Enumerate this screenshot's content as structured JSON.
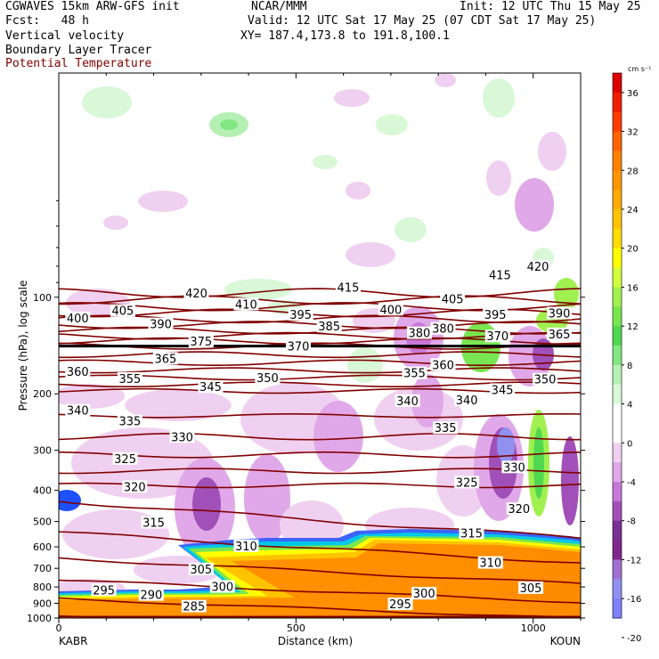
{
  "header": {
    "model": "CGWAVES 15km ARW-GFS init",
    "fcst": "Fcst:   48 h",
    "center": "NCAR/MMM",
    "init": "Init: 12 UTC Thu 15 May 25",
    "valid": "Valid: 12 UTC Sat 17 May 25 (07 CDT Sat 17 May 25)",
    "xy": "XY= 187.4,173.8 to 191.8,100.1",
    "fields": [
      "Vertical velocity",
      "Boundary Layer Tracer",
      "Potential Temperature"
    ],
    "field_colors": [
      "#000000",
      "#000000",
      "#800000"
    ]
  },
  "chart_data": {
    "type": "heatmap",
    "title": "Vertical velocity",
    "xlabel": "Distance (km)",
    "ylabel": "Pressure (hPa), log scale",
    "x_ticks": [
      0,
      500,
      1000
    ],
    "x_range": [
      0,
      1100
    ],
    "y_ticks": [
      100,
      200,
      300,
      400,
      500,
      600,
      700,
      800,
      900,
      1000
    ],
    "y_range": [
      1000,
      20
    ],
    "y_scale": "log",
    "endpoints": {
      "left": "KABR",
      "right": "KOUN"
    },
    "colorbar": {
      "units": "cm s⁻¹",
      "labels": [
        36,
        32,
        28,
        24,
        20,
        16,
        12,
        8,
        4,
        0,
        -4,
        -8,
        -12,
        -16,
        -20
      ],
      "colors": [
        "#dc0000",
        "#f01e00",
        "#ff3c00",
        "#ff6400",
        "#ff8200",
        "#ff9600",
        "#ffaa00",
        "#ffc300",
        "#ffdc00",
        "#ffff00",
        "#d2ff3c",
        "#a0f050",
        "#78e650",
        "#50d850",
        "#82e682",
        "#b4f0b4",
        "#d8f8d8",
        "#ffffff",
        "#ffffff",
        "#f0d0f0",
        "#e0a8e8",
        "#c878d8",
        "#a050b8",
        "#7a3094",
        "#80288c",
        "#a070d0",
        "#9090f0",
        "#8080ff"
      ]
    },
    "theta_labels": [
      {
        "value": 420,
        "x": 290,
        "p": 97
      },
      {
        "value": 410,
        "x": 395,
        "p": 105
      },
      {
        "value": 405,
        "x": 135,
        "p": 110
      },
      {
        "value": 400,
        "x": 40,
        "p": 116
      },
      {
        "value": 395,
        "x": 510,
        "p": 113
      },
      {
        "value": 390,
        "x": 215,
        "p": 121
      },
      {
        "value": 385,
        "x": 570,
        "p": 123
      },
      {
        "value": 375,
        "x": 300,
        "p": 137
      },
      {
        "value": 370,
        "x": 505,
        "p": 142
      },
      {
        "value": 365,
        "x": 225,
        "p": 155
      },
      {
        "value": 360,
        "x": 40,
        "p": 170
      },
      {
        "value": 355,
        "x": 150,
        "p": 179
      },
      {
        "value": 350,
        "x": 440,
        "p": 178
      },
      {
        "value": 345,
        "x": 320,
        "p": 190
      },
      {
        "value": 340,
        "x": 40,
        "p": 225
      },
      {
        "value": 335,
        "x": 150,
        "p": 243
      },
      {
        "value": 330,
        "x": 260,
        "p": 272
      },
      {
        "value": 325,
        "x": 140,
        "p": 318
      },
      {
        "value": 320,
        "x": 160,
        "p": 389
      },
      {
        "value": 315,
        "x": 200,
        "p": 503
      },
      {
        "value": 310,
        "x": 395,
        "p": 595
      },
      {
        "value": 305,
        "x": 300,
        "p": 703
      },
      {
        "value": 300,
        "x": 345,
        "p": 797
      },
      {
        "value": 295,
        "x": 95,
        "p": 817
      },
      {
        "value": 290,
        "x": 195,
        "p": 845
      },
      {
        "value": 285,
        "x": 285,
        "p": 918
      },
      {
        "value": 415,
        "x": 610,
        "p": 93
      },
      {
        "value": 400,
        "x": 700,
        "p": 109
      },
      {
        "value": 405,
        "x": 830,
        "p": 101
      },
      {
        "value": 415,
        "x": 930,
        "p": 85
      },
      {
        "value": 420,
        "x": 1010,
        "p": 80
      },
      {
        "value": 380,
        "x": 760,
        "p": 129
      },
      {
        "value": 380,
        "x": 810,
        "p": 125
      },
      {
        "value": 395,
        "x": 920,
        "p": 113
      },
      {
        "value": 390,
        "x": 1055,
        "p": 112
      },
      {
        "value": 370,
        "x": 925,
        "p": 132
      },
      {
        "value": 365,
        "x": 1055,
        "p": 130
      },
      {
        "value": 360,
        "x": 810,
        "p": 162
      },
      {
        "value": 355,
        "x": 750,
        "p": 172
      },
      {
        "value": 345,
        "x": 935,
        "p": 194
      },
      {
        "value": 350,
        "x": 1025,
        "p": 180
      },
      {
        "value": 340,
        "x": 735,
        "p": 210
      },
      {
        "value": 340,
        "x": 860,
        "p": 209
      },
      {
        "value": 335,
        "x": 815,
        "p": 255
      },
      {
        "value": 330,
        "x": 960,
        "p": 338
      },
      {
        "value": 325,
        "x": 860,
        "p": 377
      },
      {
        "value": 320,
        "x": 970,
        "p": 456
      },
      {
        "value": 315,
        "x": 870,
        "p": 543
      },
      {
        "value": 310,
        "x": 910,
        "p": 671
      },
      {
        "value": 305,
        "x": 995,
        "p": 804
      },
      {
        "value": 300,
        "x": 770,
        "p": 837
      },
      {
        "value": 295,
        "x": 720,
        "p": 903
      }
    ],
    "theta_levels": [
      285,
      290,
      295,
      300,
      305,
      310,
      315,
      320,
      325,
      330,
      335,
      340,
      345,
      350,
      355,
      360,
      365,
      370,
      375,
      380,
      385,
      390,
      395,
      400,
      405,
      410,
      415,
      420
    ],
    "tropopause_p": 142
  }
}
